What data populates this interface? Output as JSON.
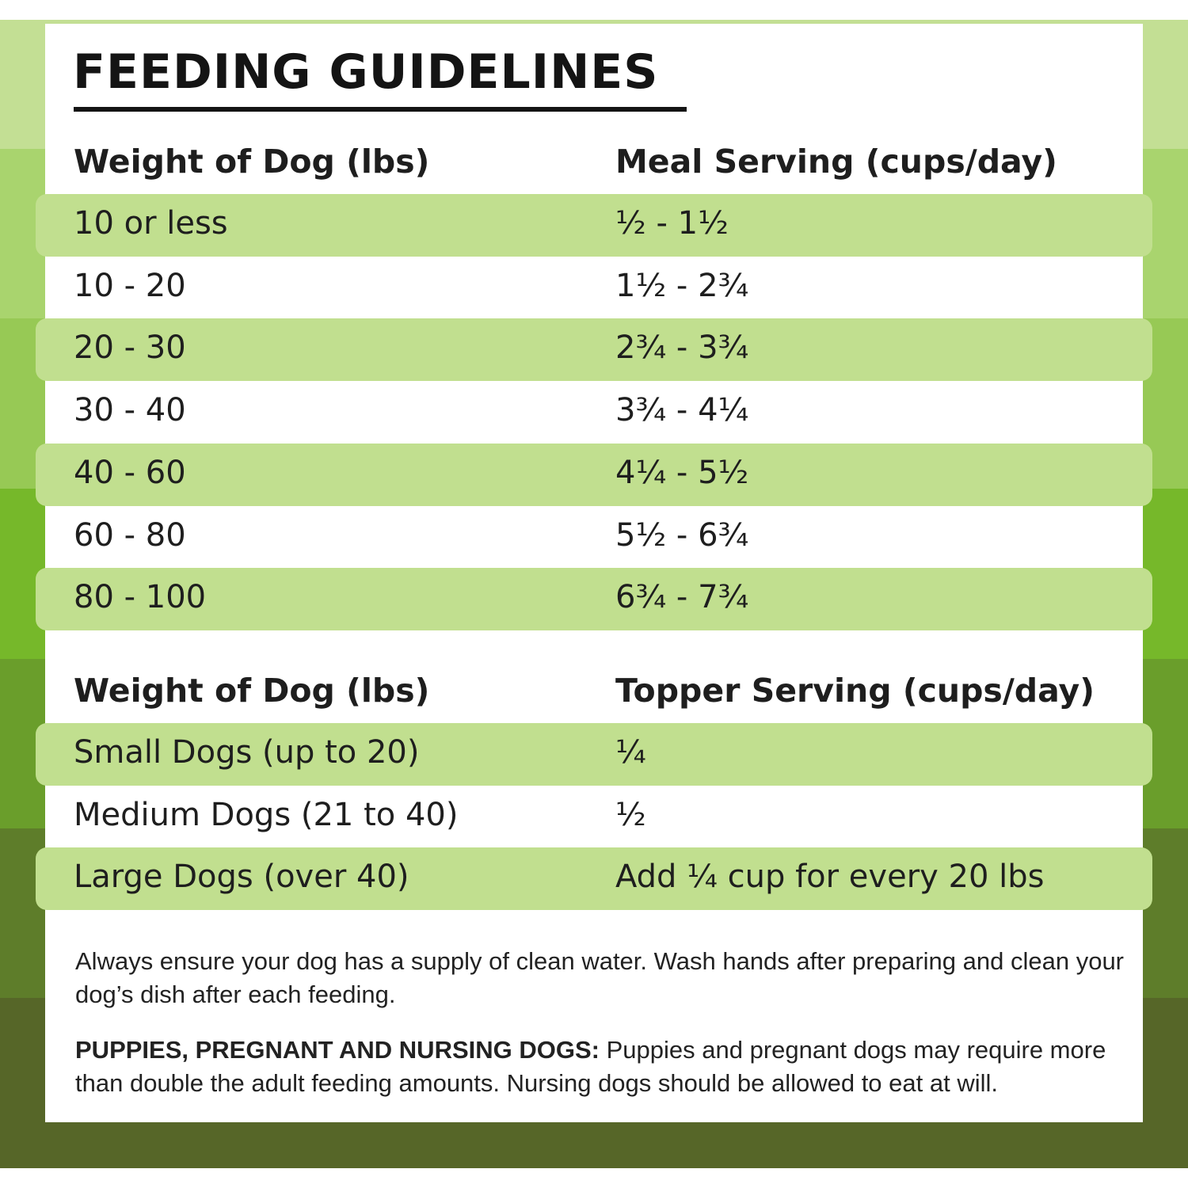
{
  "colors": {
    "bands": [
      "#c3df94",
      "#a9d46e",
      "#97c955",
      "#76b82a",
      "#6a9e2b",
      "#5e7d2a",
      "#566628"
    ],
    "row_highlight": "#c1df8f",
    "card": "#ffffff",
    "text": "#1e1e1e"
  },
  "title": "FEEDING GUIDELINES",
  "meal_table": {
    "headers": [
      "Weight of Dog (lbs)",
      "Meal Serving (cups/day)"
    ],
    "rows": [
      [
        "10 or less",
        "½ - 1½"
      ],
      [
        "10 - 20",
        "1½ - 2¾"
      ],
      [
        "20 - 30",
        "2¾ - 3¾"
      ],
      [
        "30 - 40",
        "3¾ - 4¼"
      ],
      [
        "40 - 60",
        "4¼ - 5½"
      ],
      [
        "60 - 80",
        "5½ - 6¾"
      ],
      [
        "80 - 100",
        "6¾ - 7¾"
      ]
    ]
  },
  "topper_table": {
    "headers": [
      "Weight of Dog (lbs)",
      "Topper Serving (cups/day)"
    ],
    "rows": [
      [
        "Small Dogs (up to 20)",
        "¼"
      ],
      [
        "Medium Dogs (21 to 40)",
        "½"
      ],
      [
        "Large Dogs (over 40)",
        "Add ¼ cup for every 20 lbs"
      ]
    ]
  },
  "notes": {
    "water": "Always ensure your dog has a supply of clean water. Wash hands after preparing and clean your dog’s dish after each feeding.",
    "puppies_label": "PUPPIES, PREGNANT AND NURSING DOGS:",
    "puppies_text": " Puppies and pregnant dogs may require more than double the adult feeding amounts. Nursing dogs should be allowed to eat at will."
  }
}
